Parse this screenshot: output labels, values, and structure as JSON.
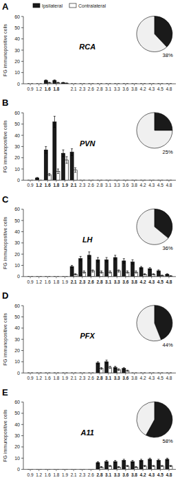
{
  "chart_data": [
    {
      "type": "bar",
      "title": "RCA",
      "annotations": [
        "A"
      ],
      "ylabel": "FG immunopositive cells",
      "categories": [
        "0.9",
        "1.2",
        "1.6",
        "1.8",
        null,
        "2.1",
        "2.3",
        "2.6",
        "2.8",
        "3.1",
        "3.3",
        "3.6",
        "3.8",
        "4.2",
        "4.3",
        "4.5",
        "4.8"
      ],
      "series": [
        {
          "name": "Ipsilateral",
          "color": "#1a1a1a",
          "values": [
            0,
            0,
            3,
            3,
            1,
            0,
            0,
            0,
            0,
            0,
            0,
            0,
            0,
            0,
            0,
            0,
            0
          ],
          "errors": [
            0,
            0,
            0.5,
            0.5,
            0.3,
            0,
            0,
            0,
            0,
            0,
            0,
            0,
            0,
            0,
            0,
            0,
            0
          ]
        },
        {
          "name": "Contralateral",
          "color": "#ffffff",
          "values": [
            0,
            0,
            1,
            1,
            0.5,
            0,
            0,
            0,
            0,
            0,
            0,
            0,
            0,
            0,
            0,
            0,
            0
          ],
          "errors": [
            0,
            0,
            0.3,
            0.3,
            0.2,
            0,
            0,
            0,
            0,
            0,
            0,
            0,
            0,
            0,
            0,
            0,
            0
          ]
        }
      ],
      "ylim": [
        0,
        60
      ],
      "yticks": [
        0,
        10,
        20,
        30,
        40,
        50,
        60
      ],
      "legend": "upper left"
    },
    {
      "type": "pie",
      "values": [
        38,
        62
      ],
      "colors": [
        "#1a1a1a",
        "#f0f0f0"
      ],
      "data_labels": true,
      "value_labels": [
        "38%",
        null
      ]
    },
    {
      "type": "bar",
      "title": "PVN",
      "annotations": [
        "B"
      ],
      "ylabel": "FG immunopositive cells",
      "categories": [
        "0.9",
        "1.2",
        "1.6",
        "1.8",
        "1.9",
        "2.1",
        "2.3",
        "2.6",
        "2.8",
        "3.1",
        "3.3",
        "3.6",
        "3.8",
        "4.2",
        "4.3",
        "4.5",
        "4.8"
      ],
      "series": [
        {
          "color": "#1a1a1a",
          "values": [
            0,
            2,
            27,
            52,
            24,
            25,
            0,
            0,
            0,
            0,
            0,
            0,
            0,
            0,
            0,
            0,
            0
          ],
          "errors": [
            0,
            0.5,
            3,
            5,
            3,
            3,
            0,
            0,
            0,
            0,
            0,
            0,
            0,
            0,
            0,
            0,
            0
          ]
        },
        {
          "color": "#ffffff",
          "values": [
            0,
            0,
            5,
            8,
            18,
            9,
            0,
            0,
            0,
            0,
            0,
            0,
            0,
            0,
            0,
            0,
            0
          ],
          "errors": [
            0,
            0,
            1,
            2,
            3,
            2,
            0,
            0,
            0,
            0,
            0,
            0,
            0,
            0,
            0,
            0,
            0
          ]
        }
      ],
      "ylim": [
        0,
        60
      ],
      "yticks": [
        0,
        10,
        20,
        30,
        40,
        50,
        60
      ]
    },
    {
      "type": "pie",
      "values": [
        25,
        75
      ],
      "colors": [
        "#1a1a1a",
        "#f0f0f0"
      ],
      "data_labels": true,
      "value_labels": [
        "25%",
        null
      ]
    },
    {
      "type": "bar",
      "title": "LH",
      "annotations": [
        "C"
      ],
      "ylabel": "FG immunopositive cells",
      "categories": [
        "0.9",
        "1.2",
        "1.6",
        "1.8",
        "1.9",
        "2.1",
        "2.3",
        "2.6",
        "2.8",
        "3.1",
        "3.3",
        "3.6",
        "3.8",
        "4.2",
        "4.3",
        "4.5",
        "4.8"
      ],
      "series": [
        {
          "color": "#1a1a1a",
          "values": [
            0,
            0,
            0,
            0,
            0,
            9,
            16,
            19,
            15,
            15,
            17,
            14,
            13,
            8,
            7,
            5,
            2
          ],
          "errors": [
            0,
            0,
            0,
            0,
            0,
            1,
            2,
            3,
            2,
            2,
            2,
            2,
            2,
            1,
            1,
            1,
            0.5
          ]
        },
        {
          "color": "#ffffff",
          "values": [
            0,
            0,
            0,
            0,
            0,
            2,
            4,
            5,
            4,
            4,
            5,
            4,
            4,
            2,
            2,
            1,
            0.5
          ],
          "errors": [
            0,
            0,
            0,
            0,
            0,
            0.5,
            1,
            1,
            1,
            1,
            1,
            1,
            1,
            0.5,
            0.5,
            0.3,
            0.3
          ]
        }
      ],
      "ylim": [
        0,
        60
      ],
      "yticks": [
        0,
        10,
        20,
        30,
        40,
        50,
        60
      ]
    },
    {
      "type": "pie",
      "values": [
        36,
        64
      ],
      "colors": [
        "#1a1a1a",
        "#f0f0f0"
      ],
      "data_labels": true,
      "value_labels": [
        "36%",
        null
      ]
    },
    {
      "type": "bar",
      "title": "PFX",
      "annotations": [
        "D"
      ],
      "ylabel": "FG immunopositive cells",
      "categories": [
        "0.9",
        "1.2",
        "1.6",
        "1.8",
        "1.9",
        "2.1",
        "2.3",
        "2.6",
        "2.8",
        "3.1",
        "3.3",
        "3.6",
        "3.8",
        "4.2",
        "4.3",
        "4.5",
        "4.8"
      ],
      "series": [
        {
          "color": "#1a1a1a",
          "values": [
            0,
            0,
            0,
            0,
            0,
            0,
            0,
            0,
            9,
            10,
            5,
            4,
            0,
            0,
            0,
            0,
            0
          ],
          "errors": [
            0,
            0,
            0,
            0,
            0,
            0,
            0,
            0,
            1,
            1.5,
            1,
            0.8,
            0,
            0,
            0,
            0,
            0
          ]
        },
        {
          "color": "#ffffff",
          "values": [
            0,
            0,
            0,
            0,
            0,
            0,
            0,
            0,
            4,
            5,
            3,
            2,
            0,
            0,
            0,
            0,
            0
          ],
          "errors": [
            0,
            0,
            0,
            0,
            0,
            0,
            0,
            0,
            0.8,
            1,
            0.8,
            0.5,
            0,
            0,
            0,
            0,
            0
          ]
        }
      ],
      "ylim": [
        0,
        60
      ],
      "yticks": [
        0,
        10,
        20,
        30,
        40,
        50,
        60
      ]
    },
    {
      "type": "pie",
      "values": [
        44,
        56
      ],
      "colors": [
        "#1a1a1a",
        "#f0f0f0"
      ],
      "data_labels": true,
      "value_labels": [
        "44%",
        null
      ]
    },
    {
      "type": "bar",
      "title": "A11",
      "annotations": [
        "E"
      ],
      "ylabel": "FG immunopositive cells",
      "categories": [
        "0.9",
        "1.2",
        "1.6",
        "1.8",
        "1.9",
        "2.1",
        "2.3",
        "2.6",
        "2.8",
        "3.1",
        "3.3",
        "3.6",
        "3.8",
        "4.2",
        "4.3",
        "4.5",
        "4.8"
      ],
      "series": [
        {
          "color": "#1a1a1a",
          "values": [
            0,
            0,
            0,
            0,
            0,
            0,
            0,
            0,
            6,
            7,
            7,
            8,
            7,
            8,
            9,
            8,
            9
          ],
          "errors": [
            0,
            0,
            0,
            0,
            0,
            0,
            0,
            0,
            0.8,
            1,
            1,
            1,
            1,
            1,
            1,
            1,
            1
          ]
        },
        {
          "color": "#ffffff",
          "values": [
            0,
            0,
            0,
            0,
            0,
            0,
            0,
            0,
            2,
            3,
            2,
            3,
            2,
            3,
            3,
            3,
            3
          ],
          "errors": [
            0,
            0,
            0,
            0,
            0,
            0,
            0,
            0,
            0.5,
            0.5,
            0.5,
            0.5,
            0.5,
            0.5,
            0.5,
            0.5,
            0.5
          ]
        }
      ],
      "ylim": [
        0,
        60
      ],
      "yticks": [
        0,
        10,
        20,
        30,
        40,
        50,
        60
      ]
    },
    {
      "type": "pie",
      "values": [
        58,
        42
      ],
      "colors": [
        "#1a1a1a",
        "#f0f0f0"
      ],
      "data_labels": true,
      "value_labels": [
        "58%",
        null
      ]
    }
  ]
}
